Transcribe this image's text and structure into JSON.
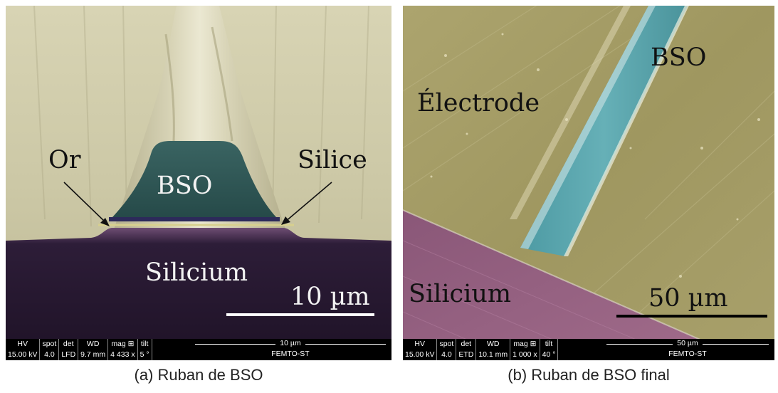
{
  "panel_a": {
    "labels": {
      "or": "Or",
      "silice": "Silice",
      "bso": "BSO",
      "silicium": "Silicium",
      "scale": "10 µm"
    },
    "databar": {
      "headers": [
        "HV",
        "spot",
        "det",
        "WD",
        "mag ⊞",
        "tilt"
      ],
      "values": [
        "15.00 kV",
        "4.0",
        "LFD",
        "9.7 mm",
        "4 433 x",
        "5 °"
      ],
      "scale": "10 µm",
      "org": "FEMTO-ST"
    },
    "caption": "(a) Ruban de BSO"
  },
  "panel_b": {
    "labels": {
      "bso": "BSO",
      "electrode": "Électrode",
      "silicium": "Silicium",
      "scale": "50 µm"
    },
    "databar": {
      "headers": [
        "HV",
        "spot",
        "det",
        "WD",
        "mag ⊞",
        "tilt"
      ],
      "values": [
        "15.00 kV",
        "4.0",
        "ETD",
        "10.1 mm",
        "1 000 x",
        "40 °"
      ],
      "scale": "50 µm",
      "org": "FEMTO-ST"
    },
    "caption": "(b) Ruban de BSO final"
  },
  "colors": {
    "gold_surface": "#c8c39c",
    "bso_teal_dark": "#2f5553",
    "bso_teal_light": "#5fa7ad",
    "silicium_dark": "#24162e",
    "silicium_purple": "#93617f",
    "electrode_olive": "#a49b64"
  }
}
